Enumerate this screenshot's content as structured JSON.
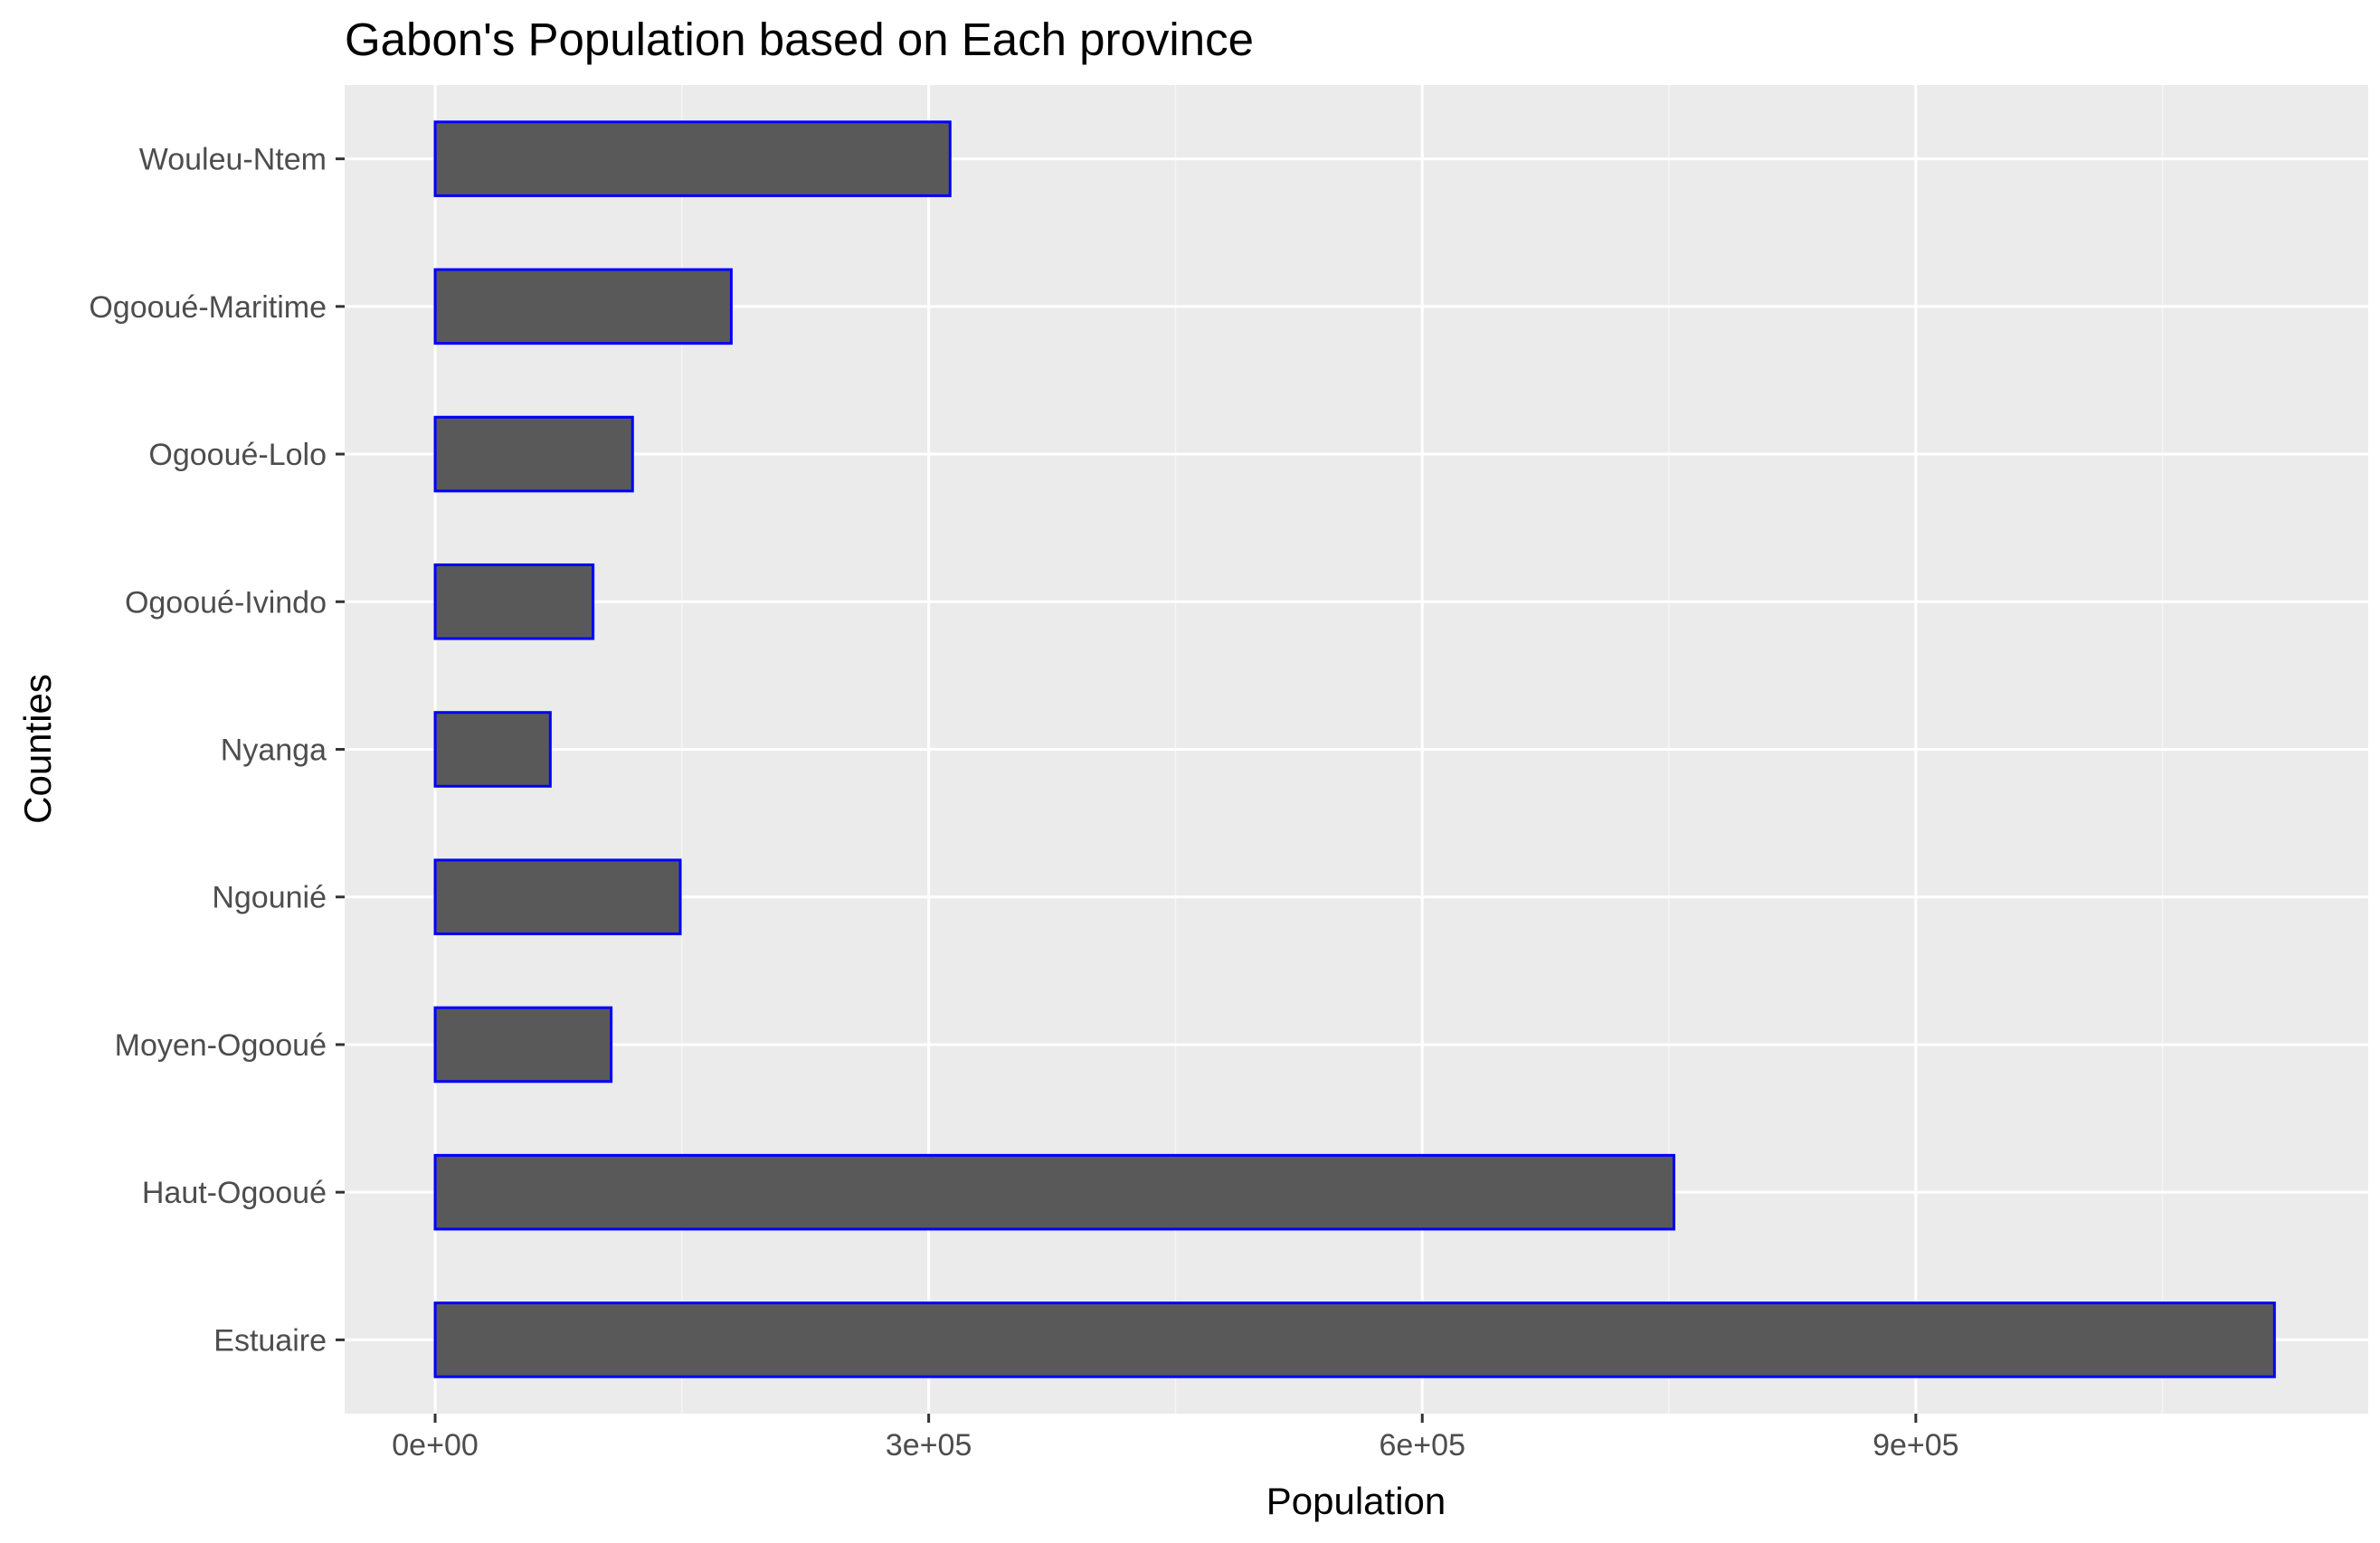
{
  "chart_data": {
    "type": "bar",
    "orientation": "horizontal",
    "title": "Gabon's Population based on Each province",
    "xlabel": "Population",
    "ylabel": "Counties",
    "categories": [
      "Estuaire",
      "Haut-Ogooué",
      "Moyen-Ogooué",
      "Ngounié",
      "Nyanga",
      "Ogooué-Ivindo",
      "Ogooué-Lolo",
      "Ogooué-Maritime",
      "Wouleu-Ntem"
    ],
    "values": [
      1118000,
      753000,
      107000,
      149000,
      70000,
      96000,
      120000,
      180000,
      313000
    ],
    "xlim": [
      -55000,
      1175000
    ],
    "xticks": [
      0,
      300000,
      600000,
      900000
    ],
    "xtick_labels": [
      "0e+00",
      "3e+05",
      "6e+05",
      "9e+05"
    ],
    "minor_xticks": [
      150000,
      450000,
      750000,
      1050000
    ],
    "grid": true,
    "legend": "none",
    "colors": {
      "bar_fill": "#595959",
      "bar_outline": "#0000ff",
      "panel_background": "#ebebeb",
      "grid_major": "#ffffff",
      "grid_minor": "#f5f5f5",
      "tick_text": "#4d4d4d"
    }
  }
}
